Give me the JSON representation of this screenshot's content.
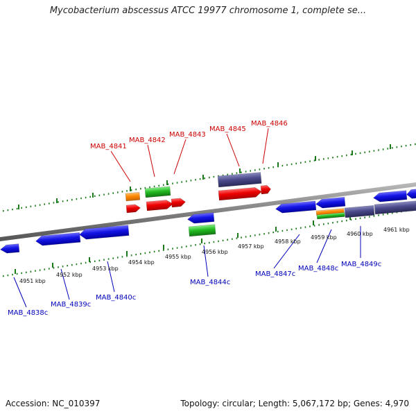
{
  "title": "Mycobacterium abscessus ATCC 19977 chromosome 1, complete se...",
  "footer": {
    "accession": "Accession: NC_010397",
    "summary": "Topology: circular; Length: 5,067,172 bp; Genes: 4,970"
  },
  "colors": {
    "forward_label": "#cc0000",
    "reverse_label": "#0000bb",
    "backbone": "#808080",
    "tick": "#1a7a1a",
    "red_gene": "#ee0000",
    "blue_gene": "#1414e6",
    "green_gene": "#22bb22",
    "orange_gene": "#ff8800",
    "purple_gene": "#4a4a8a"
  },
  "ticks": [
    {
      "label": "4951 kbp"
    },
    {
      "label": "4952 kbp"
    },
    {
      "label": "4953 kbp"
    },
    {
      "label": "4954 kbp"
    },
    {
      "label": "4955 kbp"
    },
    {
      "label": "4956 kbp"
    },
    {
      "label": "4957 kbp"
    },
    {
      "label": "4958 kbp"
    },
    {
      "label": "4959 kbp"
    },
    {
      "label": "4960 kbp"
    },
    {
      "label": "4961 kbp"
    }
  ],
  "forward_labels": [
    {
      "name": "MAB_4841"
    },
    {
      "name": "MAB_4842"
    },
    {
      "name": "MAB_4843"
    },
    {
      "name": "MAB_4845"
    },
    {
      "name": "MAB_4846"
    }
  ],
  "reverse_labels": [
    {
      "name": "MAB_4838c"
    },
    {
      "name": "MAB_4839c"
    },
    {
      "name": "MAB_4840c"
    },
    {
      "name": "MAB_4844c"
    },
    {
      "name": "MAB_4847c"
    },
    {
      "name": "MAB_4848c"
    },
    {
      "name": "MAB_4849c"
    }
  ]
}
